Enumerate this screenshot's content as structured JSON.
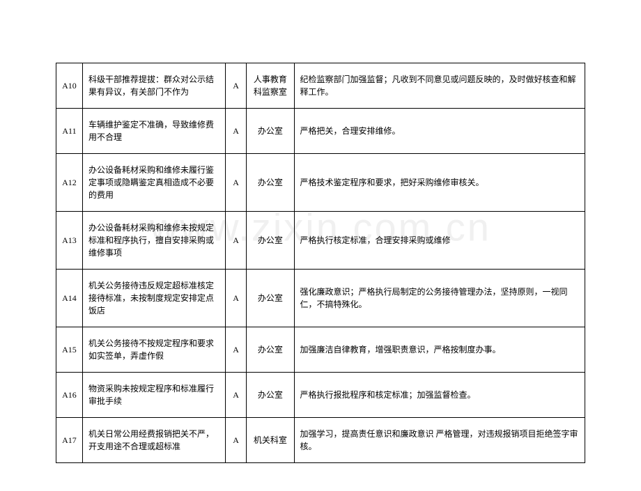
{
  "watermark_text": "www.zixin.com.cn",
  "table": {
    "type": "table",
    "columns": [
      "id",
      "description",
      "grade",
      "department",
      "measure"
    ],
    "column_widths": [
      "5%",
      "27%",
      "4%",
      "9%",
      "55%"
    ],
    "border_color": "#000000",
    "background_color": "#ffffff",
    "text_color": "#000000",
    "font_size": 12,
    "rows": [
      {
        "id": "A10",
        "description": "科级干部推荐提拔：群众对公示结果有异议，有关部门不作为",
        "grade": "A",
        "department": "人事教育科监察室",
        "measure": "纪检监察部门加强监督；凡收到不同意见或问题反映的，及时做好核查和解释工作。"
      },
      {
        "id": "A11",
        "description": "车辆维护鉴定不准确，导致维修费用不合理",
        "grade": "A",
        "department": "办公室",
        "measure": "严格把关，合理安排维修。"
      },
      {
        "id": "A12",
        "description": "办公设备耗材采购和维修未履行鉴定事项或隐瞒鉴定真相造成不必要的费用",
        "grade": "A",
        "department": "办公室",
        "measure": "严格技术鉴定程序和要求，把好采购维修审核关。"
      },
      {
        "id": "A13",
        "description": "办公设备耗材采购和维修未按规定标准和程序执行，擅自安排采购或维修事项",
        "grade": "A",
        "department": "办公室",
        "measure": "严格执行核定标准，合理安排采购或维修"
      },
      {
        "id": "A14",
        "description": "机关公务接待违反规定超标准核定接待标准，未按制度规定安排定点饭店",
        "grade": "A",
        "department": "办公室",
        "measure": "强化廉政意识；严格执行局制定的公务接待管理办法，坚持原则，一视同仁，不搞特殊化。"
      },
      {
        "id": "A15",
        "description": "机关公务接待不按规定程序和要求如实签单，弄虚作假",
        "grade": "A",
        "department": "办公室",
        "measure": "加强廉洁自律教育，增强职责意识，严格按制度办事。"
      },
      {
        "id": "A16",
        "description": "物资采购未按规定程序和标准履行审批手续",
        "grade": "A",
        "department": "办公室",
        "measure": "严格执行报批程序和核定标准；加强监督检查。"
      },
      {
        "id": "A17",
        "description": "机关日常公用经费报销把关不严，开支用途不合理或超标准",
        "grade": "A",
        "department": "机关科室",
        "measure": "加强学习，提高责任意识和廉政意识 严格管理，对违规报销项目拒绝签字审核。"
      }
    ]
  }
}
